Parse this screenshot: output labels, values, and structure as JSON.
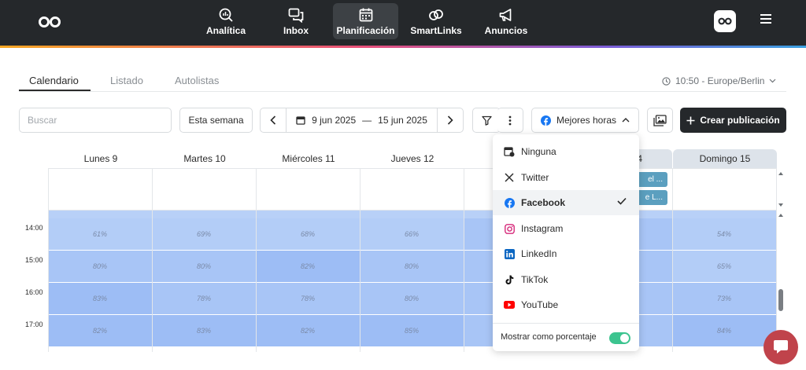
{
  "nav": {
    "items": [
      {
        "label": "Analítica",
        "icon": "analytics-icon"
      },
      {
        "label": "Inbox",
        "icon": "inbox-icon"
      },
      {
        "label": "Planificación",
        "icon": "calendar-icon",
        "active": true
      },
      {
        "label": "SmartLinks",
        "icon": "link-icon"
      },
      {
        "label": "Anuncios",
        "icon": "megaphone-icon"
      }
    ]
  },
  "tabs": [
    {
      "label": "Calendario",
      "active": true
    },
    {
      "label": "Listado"
    },
    {
      "label": "Autolistas"
    }
  ],
  "timezone": "10:50 - Europe/Berlin",
  "toolbar": {
    "search_placeholder": "Buscar",
    "this_week": "Esta semana",
    "date_from": "9 jun 2025",
    "date_sep": "—",
    "date_to": "15 jun 2025",
    "best_hours": "Mejores horas",
    "create": "Crear publicación"
  },
  "days": [
    "Lunes 9",
    "Martes 10",
    "Miércoles 11",
    "Jueves 12",
    "4",
    "Domingo 15"
  ],
  "events": [
    "el ...",
    "e L..."
  ],
  "hours": [
    "14:00",
    "15:00",
    "16:00",
    "17:00"
  ],
  "grid": {
    "rows": [
      [
        "61%",
        "69%",
        "68%",
        "66%",
        "54%"
      ],
      [
        "80%",
        "80%",
        "82%",
        "80%",
        "65%"
      ],
      [
        "83%",
        "78%",
        "78%",
        "80%",
        "73%"
      ],
      [
        "82%",
        "83%",
        "82%",
        "85%",
        "84%"
      ]
    ]
  },
  "dropdown": {
    "items": [
      {
        "label": "Ninguna",
        "icon": "calendar-clock-icon"
      },
      {
        "label": "Twitter",
        "icon": "x-logo-icon"
      },
      {
        "label": "Facebook",
        "icon": "facebook-icon",
        "selected": true
      },
      {
        "label": "Instagram",
        "icon": "instagram-icon"
      },
      {
        "label": "LinkedIn",
        "icon": "linkedin-icon"
      },
      {
        "label": "TikTok",
        "icon": "tiktok-icon"
      },
      {
        "label": "YouTube",
        "icon": "youtube-icon"
      }
    ],
    "toggle_label": "Mostrar como porcentaje",
    "toggle_on": true
  },
  "colors": {
    "nav_bg": "#25282b",
    "heat_low": "#b3cdf7",
    "heat_mid": "#a8c5f6",
    "heat_high": "#9dbdf5",
    "toggle": "#3cc48f",
    "chat": "#c0434b"
  }
}
